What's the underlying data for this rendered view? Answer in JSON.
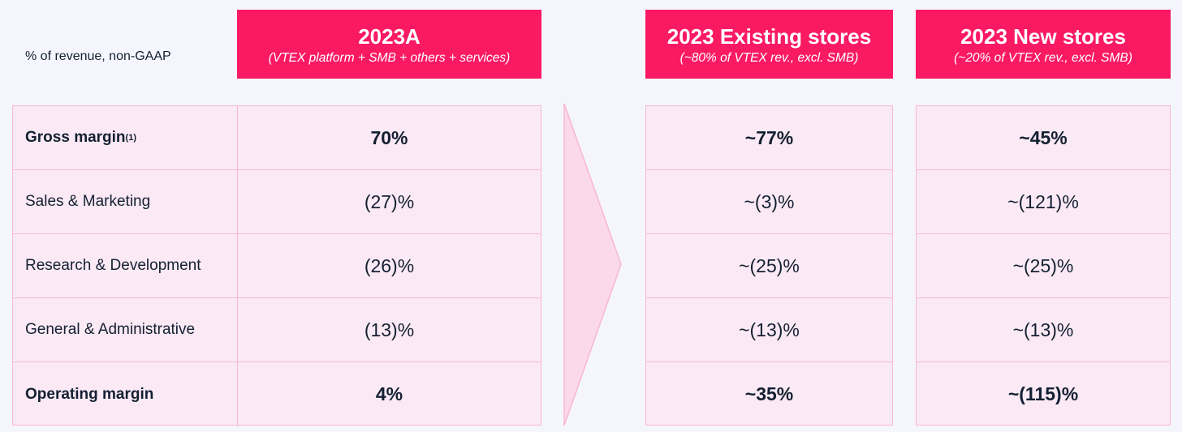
{
  "subtitle": "% of revenue, non-GAAP",
  "columns": [
    {
      "title": "2023A",
      "subtitle": "(VTEX platform + SMB + others + services)"
    },
    {
      "title": "2023 Existing stores",
      "subtitle": "(~80% of VTEX rev., excl. SMB)"
    },
    {
      "title": "2023 New stores",
      "subtitle": "(~20% of VTEX rev., excl. SMB)"
    }
  ],
  "rows": [
    {
      "label": "Gross margin",
      "footnote": "(1)",
      "bold": true,
      "actual": "70%",
      "existing": "~77%",
      "new": "~45%"
    },
    {
      "label": "Sales & Marketing",
      "bold": false,
      "actual": "(27)%",
      "existing": "~(3)%",
      "new": "~(121)%"
    },
    {
      "label": "Research & Development",
      "bold": false,
      "actual": "(26)%",
      "existing": "~(25)%",
      "new": "~(25)%"
    },
    {
      "label": "General & Administrative",
      "bold": false,
      "actual": "(13)%",
      "existing": "~(13)%",
      "new": "~(13)%"
    },
    {
      "label": "Operating margin",
      "bold": true,
      "actual": "4%",
      "existing": "~35%",
      "new": "~(115)%"
    }
  ],
  "colors": {
    "header_bg": "#fa1a64",
    "cell_bg": "#fbeaf5",
    "border": "#f8b7d3",
    "arrow_fill": "#fbd9ea",
    "page_bg": "#f5f6fd",
    "text": "#142032"
  }
}
